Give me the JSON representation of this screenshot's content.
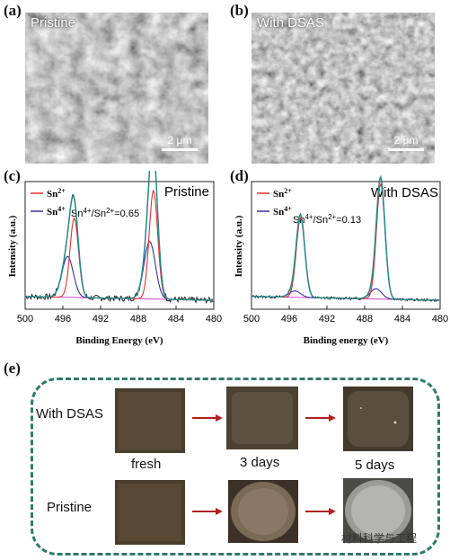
{
  "panels": {
    "a": {
      "letter": "(a)",
      "title": "Pristine",
      "scale": "2 μm"
    },
    "b": {
      "letter": "(b)",
      "title": "With DSAS",
      "scale": "2 μm"
    },
    "c": {
      "letter": "(c)",
      "title": "Pristine",
      "legend": [
        {
          "label": "Sn2+",
          "sup": "2+",
          "base": "Sn",
          "color": "#e03030"
        },
        {
          "label": "Sn4+",
          "sup": "4+",
          "base": "Sn",
          "color": "#3a2fa0"
        }
      ],
      "ratio": "Sn4+/Sn2+=0.65",
      "xlabel": "Binding Energy (eV)",
      "ylabel": "Intensity (a.u.)",
      "ticks": [
        "500",
        "496",
        "492",
        "488",
        "484",
        "480"
      ]
    },
    "d": {
      "letter": "(d)",
      "title": "With DSAS",
      "legend": [
        {
          "label": "Sn2+",
          "sup": "2+",
          "base": "Sn",
          "color": "#e03030"
        },
        {
          "label": "Sn4+",
          "sup": "4+",
          "base": "Sn",
          "color": "#3a2fa0"
        }
      ],
      "ratio": "Sn4+/Sn2+=0.13",
      "xlabel": "Binding energy (eV)",
      "ylabel": "Intensity (a.u.)",
      "ticks": [
        "500",
        "496",
        "492",
        "488",
        "484",
        "480"
      ]
    },
    "e": {
      "letter": "(e)",
      "row1": "With DSAS",
      "row2": "Pristine",
      "times": [
        "fresh",
        "3 days",
        "5 days"
      ]
    }
  },
  "chart_data": [
    {
      "type": "line",
      "panel": "c",
      "x_range": [
        500,
        480
      ],
      "x_ticks": [
        500,
        496,
        492,
        488,
        484,
        480
      ],
      "x_reversed": true,
      "peaks": {
        "Sn2+": [
          {
            "center": 494.8,
            "height": 0.62
          },
          {
            "center": 486.4,
            "height": 0.85
          }
        ],
        "Sn4+": [
          {
            "center": 495.5,
            "height": 0.32
          },
          {
            "center": 486.8,
            "height": 0.45
          }
        ]
      },
      "ratio_Sn4_Sn2": 0.65,
      "colors": {
        "Sn2+": "#e03030",
        "Sn4+": "#3a2fa0",
        "fit": "#2a8a8a",
        "background": "#d040d0",
        "raw": "#111111"
      }
    },
    {
      "type": "line",
      "panel": "d",
      "x_range": [
        500,
        480
      ],
      "x_ticks": [
        500,
        496,
        492,
        488,
        484,
        480
      ],
      "x_reversed": true,
      "peaks": {
        "Sn2+": [
          {
            "center": 494.8,
            "height": 0.62
          },
          {
            "center": 486.3,
            "height": 0.9
          }
        ],
        "Sn4+": [
          {
            "center": 495.4,
            "height": 0.05
          },
          {
            "center": 486.8,
            "height": 0.08
          }
        ]
      },
      "ratio_Sn4_Sn2": 0.13,
      "colors": {
        "Sn2+": "#e03030",
        "Sn4+": "#3a2fa0",
        "fit": "#2a8a8a",
        "background": "#d040d0",
        "raw": "#111111"
      }
    }
  ],
  "watermark": "材料科学与工程"
}
